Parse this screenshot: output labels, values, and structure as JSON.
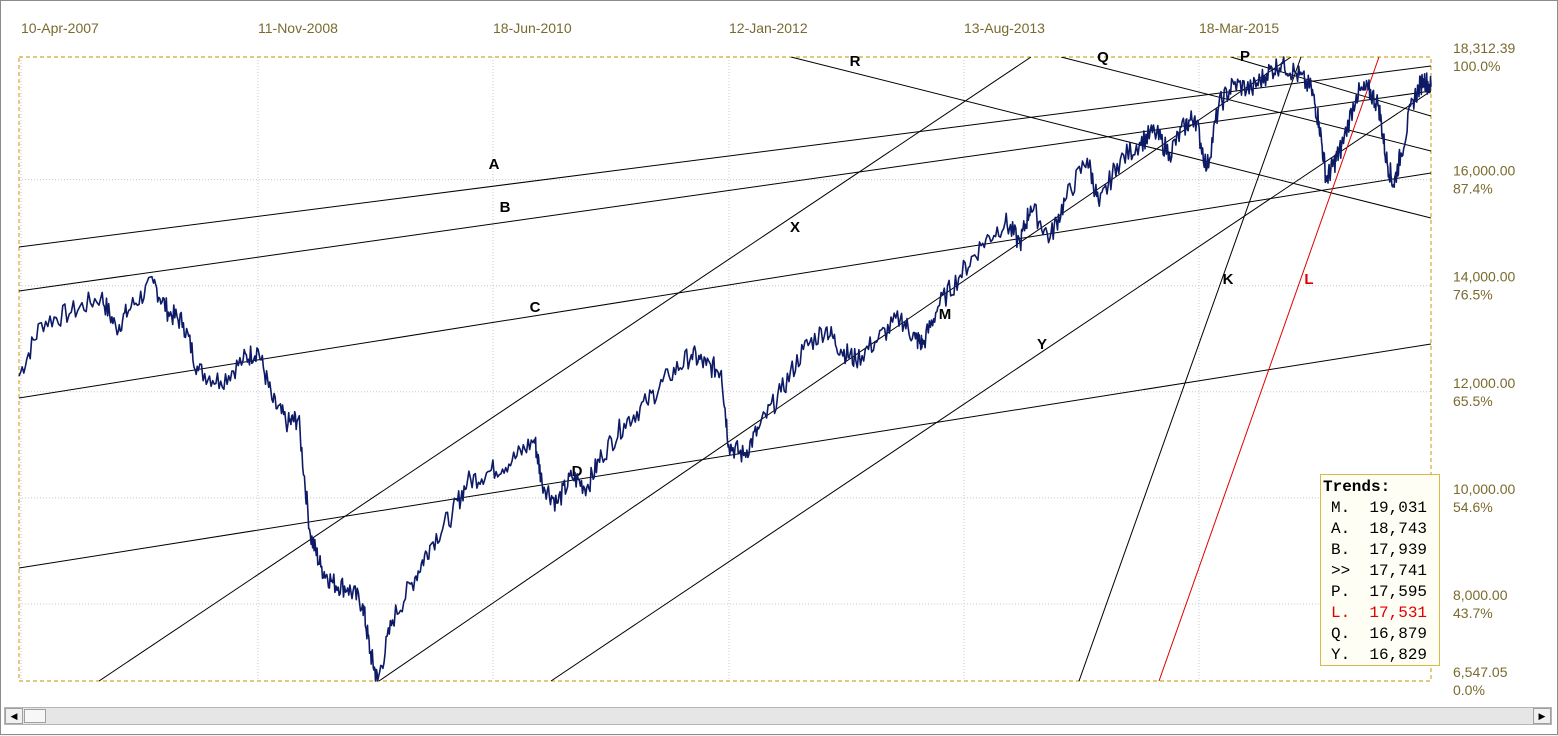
{
  "chart_data": {
    "type": "line",
    "x_tick_labels": [
      "10-Apr-2007",
      "11-Nov-2008",
      "18-Jun-2010",
      "12-Jan-2012",
      "13-Aug-2013",
      "18-Mar-2015"
    ],
    "y_ticks": [
      {
        "value": 18312.39,
        "label": "18,312.39",
        "pct": "100.0%"
      },
      {
        "value": 16000,
        "label": "16,000.00",
        "pct": "87.4%"
      },
      {
        "value": 14000,
        "label": "14,000.00",
        "pct": "76.5%"
      },
      {
        "value": 12000,
        "label": "12,000.00",
        "pct": "65.5%"
      },
      {
        "value": 10000,
        "label": "10,000.00",
        "pct": "54.6%"
      },
      {
        "value": 8000,
        "label": "8,000.00",
        "pct": "43.7%"
      },
      {
        "value": 6547.05,
        "label": "6,547.05",
        "pct": "0.0%"
      }
    ],
    "ylim": [
      6547.05,
      18312.39
    ],
    "xlim": [
      2006.85,
      2016.3
    ],
    "grid": true,
    "series": [
      {
        "color": "#0d1a66",
        "points": [
          [
            2006.85,
            12300
          ],
          [
            2007.0,
            13300
          ],
          [
            2007.2,
            13500
          ],
          [
            2007.4,
            13800
          ],
          [
            2007.5,
            13200
          ],
          [
            2007.6,
            13600
          ],
          [
            2007.75,
            14050
          ],
          [
            2007.85,
            13500
          ],
          [
            2007.95,
            13300
          ],
          [
            2008.05,
            12400
          ],
          [
            2008.2,
            12200
          ],
          [
            2008.35,
            12600
          ],
          [
            2008.45,
            12800
          ],
          [
            2008.55,
            11800
          ],
          [
            2008.65,
            11400
          ],
          [
            2008.72,
            11500
          ],
          [
            2008.8,
            9300
          ],
          [
            2008.87,
            8700
          ],
          [
            2008.95,
            8400
          ],
          [
            2009.05,
            8300
          ],
          [
            2009.15,
            8000
          ],
          [
            2009.2,
            7100
          ],
          [
            2009.25,
            6547
          ],
          [
            2009.35,
            7700
          ],
          [
            2009.5,
            8500
          ],
          [
            2009.6,
            9100
          ],
          [
            2009.75,
            9700
          ],
          [
            2009.85,
            10300
          ],
          [
            2010.0,
            10500
          ],
          [
            2010.15,
            10700
          ],
          [
            2010.3,
            11100
          ],
          [
            2010.35,
            10300
          ],
          [
            2010.45,
            9900
          ],
          [
            2010.55,
            10400
          ],
          [
            2010.65,
            10200
          ],
          [
            2010.75,
            10800
          ],
          [
            2010.9,
            11400
          ],
          [
            2011.05,
            11800
          ],
          [
            2011.2,
            12300
          ],
          [
            2011.35,
            12700
          ],
          [
            2011.45,
            12500
          ],
          [
            2011.55,
            12400
          ],
          [
            2011.6,
            11000
          ],
          [
            2011.7,
            10800
          ],
          [
            2011.8,
            11300
          ],
          [
            2011.95,
            12000
          ],
          [
            2012.1,
            12800
          ],
          [
            2012.25,
            13200
          ],
          [
            2012.35,
            12800
          ],
          [
            2012.45,
            12600
          ],
          [
            2012.6,
            13000
          ],
          [
            2012.75,
            13400
          ],
          [
            2012.85,
            13000
          ],
          [
            2012.9,
            12900
          ],
          [
            2013.0,
            13600
          ],
          [
            2013.15,
            14200
          ],
          [
            2013.3,
            14800
          ],
          [
            2013.45,
            15200
          ],
          [
            2013.55,
            14800
          ],
          [
            2013.62,
            15500
          ],
          [
            2013.75,
            14900
          ],
          [
            2013.85,
            15600
          ],
          [
            2014.0,
            16400
          ],
          [
            2014.08,
            15500
          ],
          [
            2014.2,
            16300
          ],
          [
            2014.35,
            16700
          ],
          [
            2014.45,
            16900
          ],
          [
            2014.55,
            16500
          ],
          [
            2014.65,
            17000
          ],
          [
            2014.72,
            17200
          ],
          [
            2014.8,
            16200
          ],
          [
            2014.88,
            17400
          ],
          [
            2014.98,
            17800
          ],
          [
            2015.1,
            17700
          ],
          [
            2015.2,
            18000
          ],
          [
            2015.3,
            18200
          ],
          [
            2015.4,
            18000
          ],
          [
            2015.5,
            17700
          ],
          [
            2015.55,
            17100
          ],
          [
            2015.6,
            16000
          ],
          [
            2015.65,
            16300
          ],
          [
            2015.7,
            16600
          ],
          [
            2015.8,
            17600
          ],
          [
            2015.88,
            17700
          ],
          [
            2015.95,
            17400
          ],
          [
            2016.0,
            16400
          ],
          [
            2016.05,
            15900
          ],
          [
            2016.1,
            16500
          ],
          [
            2016.18,
            17500
          ],
          [
            2016.25,
            17900
          ],
          [
            2016.3,
            17750
          ]
        ]
      }
    ],
    "trendline_labels": [
      {
        "text": "A",
        "color": "#000000"
      },
      {
        "text": "B",
        "color": "#000000"
      },
      {
        "text": "C",
        "color": "#000000"
      },
      {
        "text": "D",
        "color": "#000000"
      },
      {
        "text": "R",
        "color": "#000000"
      },
      {
        "text": "Q",
        "color": "#000000"
      },
      {
        "text": "P",
        "color": "#000000"
      },
      {
        "text": "X",
        "color": "#000000"
      },
      {
        "text": "M",
        "color": "#000000"
      },
      {
        "text": "Y",
        "color": "#000000"
      },
      {
        "text": "K",
        "color": "#000000"
      },
      {
        "text": "L",
        "color": "#e00000"
      }
    ],
    "trends_panel": {
      "title": "Trends:",
      "rows": [
        {
          "label": "M.",
          "value": "19,031",
          "color": "#000000"
        },
        {
          "label": "A.",
          "value": "18,743",
          "color": "#000000"
        },
        {
          "label": "B.",
          "value": "17,939",
          "color": "#000000"
        },
        {
          "label": ">>",
          "value": "17,741",
          "color": "#000000"
        },
        {
          "label": "P.",
          "value": "17,595",
          "color": "#000000"
        },
        {
          "label": "L.",
          "value": "17,531",
          "color": "#e00000"
        },
        {
          "label": "Q.",
          "value": "16,879",
          "color": "#000000"
        },
        {
          "label": "Y.",
          "value": "16,829",
          "color": "#000000"
        }
      ]
    },
    "colors": {
      "tick_text": "#7a6a2e",
      "frame": "#d4a832",
      "grid": "#c8c8c8",
      "trendline": "#000000",
      "trendline_L": "#e00000"
    }
  }
}
